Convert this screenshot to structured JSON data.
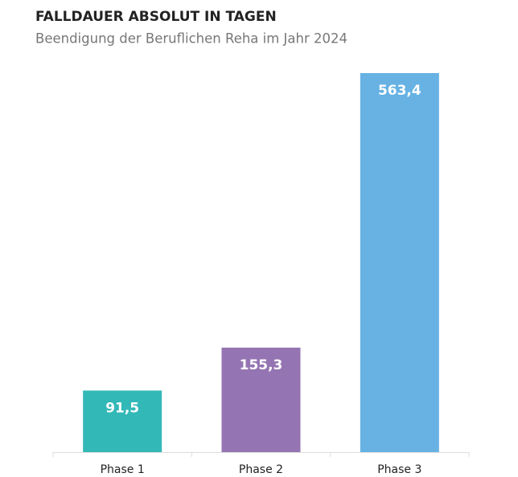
{
  "chart_data": {
    "type": "bar",
    "title": "FALLDAUER ABSOLUT IN TAGEN",
    "subtitle": "Beendigung der Beruflichen Reha im Jahr 2024",
    "categories": [
      "Phase 1",
      "Phase 2",
      "Phase 3"
    ],
    "values": [
      91.5,
      155.3,
      563.4
    ],
    "value_labels": [
      "91,5",
      "155,3",
      "563,4"
    ],
    "colors": [
      "#33b8b8",
      "#9474b2",
      "#67b2e3"
    ]
  }
}
